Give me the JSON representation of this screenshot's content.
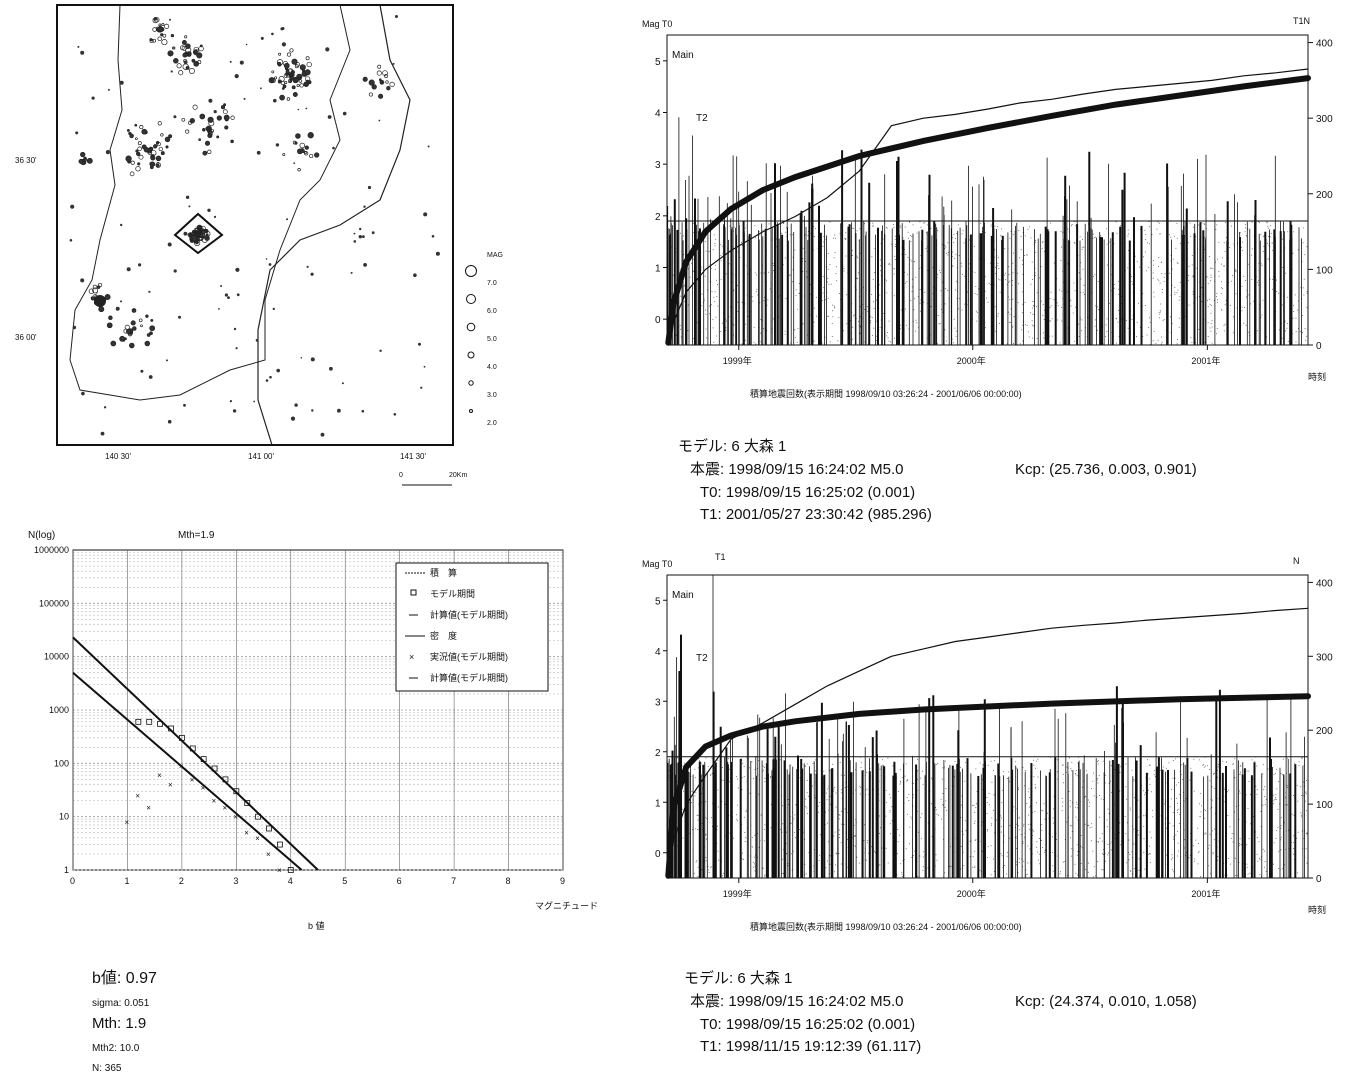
{
  "map": {
    "lat_labels": [
      "36 30'",
      "36 00'"
    ],
    "lon_labels": [
      "140 30'",
      "141 00'",
      "141 30'"
    ],
    "legend_title": "MAG",
    "legend_values": [
      "7.0",
      "6.0",
      "5.0",
      "4.0",
      "3.0",
      "2.0"
    ],
    "scale_labels": [
      "0",
      "20Km"
    ]
  },
  "bvalue_panel": {
    "b_value": "b値: 0.97",
    "sigma": "sigma: 0.051",
    "mth": "Mth: 1.9",
    "mth2": "Mth2: 10.0",
    "n": "N: 365"
  },
  "model_top": {
    "model": "モデル: 6 大森 1",
    "main": "本震: 1998/09/15 16:24:02 M5.0",
    "kcp": "Kcp: (25.736, 0.003, 0.901)",
    "t0": "T0: 1998/09/15 16:25:02 (0.001)",
    "t1": "T1: 2001/05/27 23:30:42 (985.296)"
  },
  "model_bottom": {
    "model": "モデル: 6 大森 1",
    "main": "本震: 1998/09/15 16:24:02 M5.0",
    "kcp": "Kcp: (24.374, 0.010, 1.058)",
    "t0": "T0: 1998/09/15 16:25:02 (0.001)",
    "t1": "T1: 1998/11/15 19:12:39 (61.117)"
  },
  "chart_data": [
    {
      "type": "line",
      "id": "gr",
      "title": "Mth=1.9",
      "ylabel": "N(log)",
      "xlabel": "マグニチュード",
      "bottom_label": "b 値",
      "xlim": [
        0,
        9
      ],
      "ylim": [
        1,
        1000000
      ],
      "log_y": true,
      "xticks": [
        "0",
        "1",
        "2",
        "3",
        "4",
        "5",
        "6",
        "7",
        "8",
        "9"
      ],
      "yticks": [
        "1000000",
        "100000",
        "10000",
        "1000",
        "100",
        "10",
        "1"
      ],
      "legend": [
        "積　算",
        "モデル期間",
        "計算値(モデル期間)",
        "密　度",
        "実況値(モデル期間)",
        "計算値(モデル期間)"
      ],
      "series": [
        {
          "name": "モデル期間",
          "x": [
            1.2,
            1.4,
            1.6,
            1.8,
            2.0,
            2.2,
            2.4,
            2.6,
            2.8,
            3.0,
            3.2,
            3.4,
            3.6,
            3.8,
            4.0
          ],
          "y": [
            600,
            600,
            550,
            450,
            300,
            190,
            120,
            80,
            50,
            30,
            18,
            10,
            6,
            3,
            1
          ]
        },
        {
          "name": "計算値(モデル期間) 積算",
          "x": [
            0,
            4.5
          ],
          "y": [
            23000,
            1
          ]
        },
        {
          "name": "実況値(モデル期間)",
          "x": [
            1.0,
            1.2,
            1.4,
            1.6,
            1.8,
            2.0,
            2.2,
            2.4,
            2.6,
            2.8,
            3.0,
            3.2,
            3.4,
            3.6,
            3.8
          ],
          "y": [
            8,
            25,
            15,
            60,
            40,
            90,
            50,
            35,
            20,
            15,
            10,
            5,
            4,
            2,
            1
          ]
        },
        {
          "name": "計算値(モデル期間) 密度",
          "x": [
            0,
            4.2
          ],
          "y": [
            5000,
            1
          ]
        }
      ],
      "grid": true,
      "legend_position": "top-right"
    },
    {
      "type": "bar",
      "id": "cum_top",
      "title": "積算地震回数(表示期間 1998/09/10 03:26:24 - 2001/06/06 00:00:00)",
      "left_label": "Mag T0",
      "right_label": "T1N",
      "xlabel_right": "時刻",
      "annotations": [
        "Main",
        "T2"
      ],
      "x_ticks": [
        "1999年",
        "2000年",
        "2001年"
      ],
      "mag_ticks": [
        "0",
        "1",
        "2",
        "3",
        "4",
        "5"
      ],
      "count_ticks": [
        "0",
        "100",
        "200",
        "300",
        "400"
      ],
      "mag_range": [
        -0.5,
        5.5
      ],
      "count_range": [
        0,
        410
      ],
      "time_range": [
        0,
        1000
      ],
      "year_positions_days": [
        112,
        477,
        843
      ],
      "series": [
        {
          "name": "model",
          "x": [
            2,
            10,
            30,
            60,
            100,
            150,
            200,
            300,
            400,
            500,
            600,
            700,
            800,
            900,
            1000
          ],
          "y": [
            3,
            55,
            110,
            150,
            180,
            205,
            222,
            250,
            270,
            287,
            303,
            318,
            330,
            342,
            353
          ]
        },
        {
          "name": "observed",
          "x": [
            2,
            10,
            30,
            60,
            100,
            150,
            200,
            250,
            300,
            350,
            400,
            450,
            500,
            550,
            600,
            650,
            700,
            750,
            800,
            850,
            900,
            950,
            1000
          ],
          "y": [
            2,
            30,
            70,
            100,
            125,
            150,
            170,
            195,
            230,
            290,
            300,
            305,
            312,
            320,
            325,
            332,
            338,
            342,
            346,
            350,
            356,
            360,
            365
          ]
        }
      ]
    },
    {
      "type": "bar",
      "id": "cum_bottom",
      "title": "積算地震回数(表示期間 1998/09/10 03:26:24 - 2001/06/06 00:00:00)",
      "left_label": "Mag T0",
      "left_label2": "T1",
      "right_label": "N",
      "xlabel_right": "時刻",
      "annotations": [
        "Main",
        "T2"
      ],
      "x_ticks": [
        "1999年",
        "2000年",
        "2001年"
      ],
      "mag_ticks": [
        "0",
        "1",
        "2",
        "3",
        "4",
        "5"
      ],
      "count_ticks": [
        "0",
        "100",
        "200",
        "300",
        "400"
      ],
      "mag_range": [
        -0.5,
        5.5
      ],
      "count_range": [
        0,
        410
      ],
      "time_range": [
        0,
        1000
      ],
      "year_positions_days": [
        112,
        477,
        843
      ],
      "series": [
        {
          "name": "model",
          "x": [
            2,
            10,
            30,
            60,
            100,
            150,
            200,
            300,
            400,
            500,
            600,
            700,
            800,
            900,
            1000
          ],
          "y": [
            3,
            95,
            150,
            178,
            193,
            205,
            212,
            222,
            228,
            232,
            236,
            239,
            242,
            244,
            246
          ]
        },
        {
          "name": "observed",
          "x": [
            2,
            10,
            30,
            61,
            100,
            150,
            200,
            250,
            300,
            350,
            400,
            450,
            500,
            550,
            600,
            650,
            700,
            750,
            800,
            850,
            900,
            950,
            1000
          ],
          "y": [
            2,
            50,
            100,
            140,
            188,
            210,
            235,
            260,
            280,
            300,
            310,
            320,
            326,
            332,
            338,
            342,
            345,
            349,
            352,
            355,
            358,
            362,
            365
          ]
        }
      ]
    }
  ]
}
